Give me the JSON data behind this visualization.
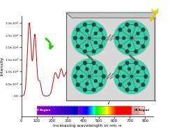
{
  "xlabel": "Increasing wavelength in nm →",
  "ylabel": "Intensity",
  "xlim": [
    0,
    850
  ],
  "ylim": [
    -8500,
    33000
  ],
  "yticks": [
    0,
    5000,
    10000,
    15000,
    20000,
    25000,
    30000
  ],
  "ytick_labels": [
    "0.0",
    "5.0×10³",
    "1.0×10⁴",
    "1.5×10⁴",
    "2.0×10⁴",
    "2.5×10⁴",
    "3.0×10⁴"
  ],
  "xticks": [
    0,
    100,
    200,
    300,
    400,
    500,
    600,
    700,
    800
  ],
  "line_color": "#cc0000",
  "bg_color": "#ffffff",
  "spectrum_y_bottom": -7500,
  "spectrum_height": 3200,
  "spectrum_x_start": 155,
  "spectrum_x_end": 760
}
